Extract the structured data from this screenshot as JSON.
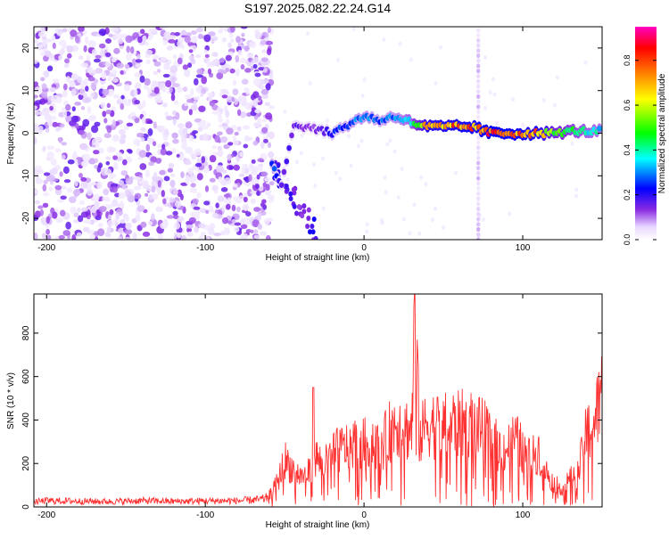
{
  "title": "S197.2025.082.22.24.G14",
  "chart_data": [
    {
      "type": "heatmap",
      "xlabel": "Height of straight line (km)",
      "ylabel": "Frequency (Hz)",
      "xlim": [
        -208,
        150
      ],
      "ylim": [
        -25,
        25
      ],
      "x_ticks": [
        -200,
        -100,
        0,
        100
      ],
      "y_ticks": [
        -20,
        -10,
        0,
        10,
        20
      ],
      "colorbar": {
        "label": "Normalized spectral amplitude",
        "range": [
          0,
          0.95
        ],
        "ticks": [
          0.0,
          0.2,
          0.4,
          0.6,
          0.8
        ],
        "colors": [
          "#ffffff",
          "#e8d8ff",
          "#8a2be2",
          "#0000ff",
          "#00ffff",
          "#00ff00",
          "#ffff00",
          "#ff8000",
          "#ff0000",
          "#ff00c0"
        ]
      },
      "ridge": [
        {
          "x": -58,
          "f": -7,
          "a": 0.3
        },
        {
          "x": -52,
          "f": -12,
          "a": 0.2
        },
        {
          "x": -44,
          "f": 2,
          "a": 0.18
        },
        {
          "x": -30,
          "f": 1,
          "a": 0.15
        },
        {
          "x": -20,
          "f": 0,
          "a": 0.25
        },
        {
          "x": -10,
          "f": 2,
          "a": 0.3
        },
        {
          "x": 0,
          "f": 4,
          "a": 0.35
        },
        {
          "x": 10,
          "f": 3,
          "a": 0.3
        },
        {
          "x": 20,
          "f": 4,
          "a": 0.35
        },
        {
          "x": 30,
          "f": 2.5,
          "a": 0.45
        },
        {
          "x": 40,
          "f": 1.5,
          "a": 0.8
        },
        {
          "x": 50,
          "f": 1.5,
          "a": 0.8
        },
        {
          "x": 60,
          "f": 1.5,
          "a": 0.85
        },
        {
          "x": 68,
          "f": 1.5,
          "a": 0.85
        },
        {
          "x": 80,
          "f": 0,
          "a": 0.9
        },
        {
          "x": 90,
          "f": 0,
          "a": 0.9
        },
        {
          "x": 100,
          "f": 0,
          "a": 0.85
        },
        {
          "x": 110,
          "f": 0,
          "a": 0.8
        },
        {
          "x": 120,
          "f": 0,
          "a": 0.6
        },
        {
          "x": 130,
          "f": 0.5,
          "a": 0.5
        },
        {
          "x": 140,
          "f": 0.5,
          "a": 0.45
        },
        {
          "x": 150,
          "f": 0.5,
          "a": 0.4
        }
      ]
    },
    {
      "type": "line",
      "xlabel": "Height of straight line (km)",
      "ylabel": "SNR (10 * v/v)",
      "xlim": [
        -208,
        150
      ],
      "ylim": [
        0,
        980
      ],
      "x_ticks": [
        -200,
        -100,
        0,
        100
      ],
      "y_ticks": [
        0,
        200,
        400,
        600,
        800
      ],
      "line_color": "#ff3030",
      "series": [
        {
          "name": "SNR",
          "x": [
            -208,
            -200,
            -180,
            -160,
            -140,
            -120,
            -100,
            -80,
            -66,
            -62,
            -58,
            -54,
            -50,
            -45,
            -40,
            -35,
            -30,
            -25,
            -20,
            -15,
            -10,
            -5,
            0,
            5,
            10,
            15,
            20,
            25,
            30,
            32,
            35,
            40,
            45,
            50,
            55,
            60,
            65,
            70,
            75,
            80,
            85,
            90,
            95,
            100,
            105,
            110,
            115,
            120,
            125,
            130,
            135,
            140,
            145,
            150
          ],
          "y": [
            25,
            30,
            28,
            26,
            30,
            27,
            29,
            30,
            35,
            40,
            80,
            140,
            250,
            200,
            160,
            180,
            260,
            220,
            280,
            300,
            320,
            340,
            330,
            360,
            300,
            380,
            450,
            420,
            400,
            980,
            360,
            450,
            430,
            420,
            440,
            430,
            450,
            420,
            400,
            380,
            300,
            310,
            360,
            300,
            250,
            300,
            180,
            120,
            100,
            150,
            180,
            380,
            440,
            600
          ]
        }
      ]
    }
  ]
}
